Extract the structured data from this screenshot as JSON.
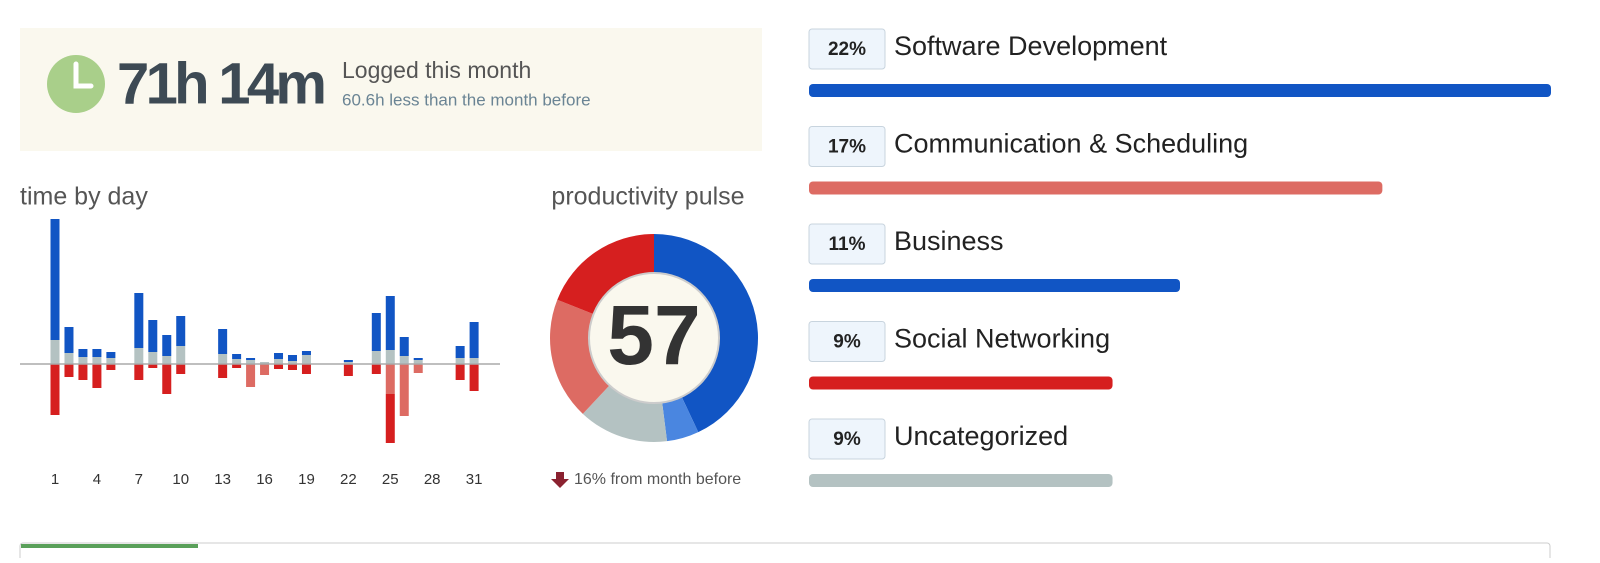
{
  "summary": {
    "total": "71h 14m",
    "label": "Logged this month",
    "comparison": "60.6h less than the month before"
  },
  "chart_data": [
    {
      "type": "bar",
      "title": "time by day",
      "stacked": true,
      "categories": [
        "1",
        null,
        null,
        "4",
        null,
        null,
        "7",
        null,
        null,
        "10",
        null,
        null,
        "13",
        null,
        null,
        "16",
        null,
        null,
        "19",
        null,
        null,
        "22",
        null,
        null,
        "25",
        null,
        null,
        "28",
        null,
        null,
        "31"
      ],
      "series": [
        {
          "color": "#b4c2c2",
          "values": [
            2.4,
            1.1,
            0.7,
            0.7,
            0.6,
            0,
            1.6,
            1.2,
            0.8,
            1.8,
            0,
            0,
            1.0,
            0.5,
            0.4,
            0.2,
            0.5,
            0.3,
            0.9,
            0,
            0,
            0.2,
            0,
            1.3,
            1.4,
            0.8,
            0.4,
            0,
            0,
            0.6,
            0.6
          ]
        },
        {
          "color": "#1155c4",
          "values": [
            12.1,
            2.6,
            0.8,
            0.8,
            0.6,
            0,
            5.5,
            3.2,
            2.1,
            3.0,
            0,
            0,
            2.5,
            0.5,
            0.2,
            0,
            0.6,
            0.6,
            0.4,
            0,
            0,
            0.2,
            0,
            3.8,
            5.4,
            1.9,
            0.2,
            0,
            0,
            1.2,
            3.6
          ]
        },
        {
          "color": "#dd6b63",
          "values": [
            0,
            0,
            0,
            0,
            0,
            0,
            0,
            0,
            0,
            0,
            0,
            0,
            0,
            0,
            -2.3,
            -1.1,
            0,
            0,
            0,
            0,
            0,
            0,
            0,
            0,
            -3.0,
            -5.2,
            -0.9,
            0,
            0,
            0,
            0
          ]
        },
        {
          "color": "#d61f1f",
          "values": [
            -5.1,
            -1.3,
            -1.6,
            -2.4,
            -0.6,
            0,
            -1.6,
            -0.4,
            -3.0,
            -1.0,
            0,
            0,
            -1.4,
            -0.4,
            0,
            0,
            -0.5,
            -0.6,
            -1.0,
            0,
            0,
            -1.2,
            0,
            -1.0,
            -4.9,
            0,
            0,
            0,
            0,
            -1.6,
            -2.7
          ]
        }
      ],
      "ylim": [
        -9,
        14.5
      ]
    },
    {
      "type": "pie",
      "title": "productivity pulse",
      "score": 57,
      "values": [
        43,
        5,
        14,
        19,
        19
      ],
      "colors": [
        "#1155c4",
        "#4a86e0",
        "#b4c2c2",
        "#dd6b63",
        "#d61f1f"
      ],
      "annotation": "16% from month before"
    },
    {
      "type": "hbar",
      "categories": [
        "Software Development",
        "Communication & Scheduling",
        "Business",
        "Social Networking",
        "Uncategorized"
      ],
      "values": [
        22,
        17,
        11,
        9,
        9
      ],
      "value_labels": [
        "22%",
        "17%",
        "11%",
        "9%",
        "9%"
      ],
      "colors": [
        "#1155c4",
        "#dd6b63",
        "#1155c4",
        "#d61f1f",
        "#b4c2c2"
      ],
      "xlim": [
        0,
        22
      ]
    }
  ]
}
